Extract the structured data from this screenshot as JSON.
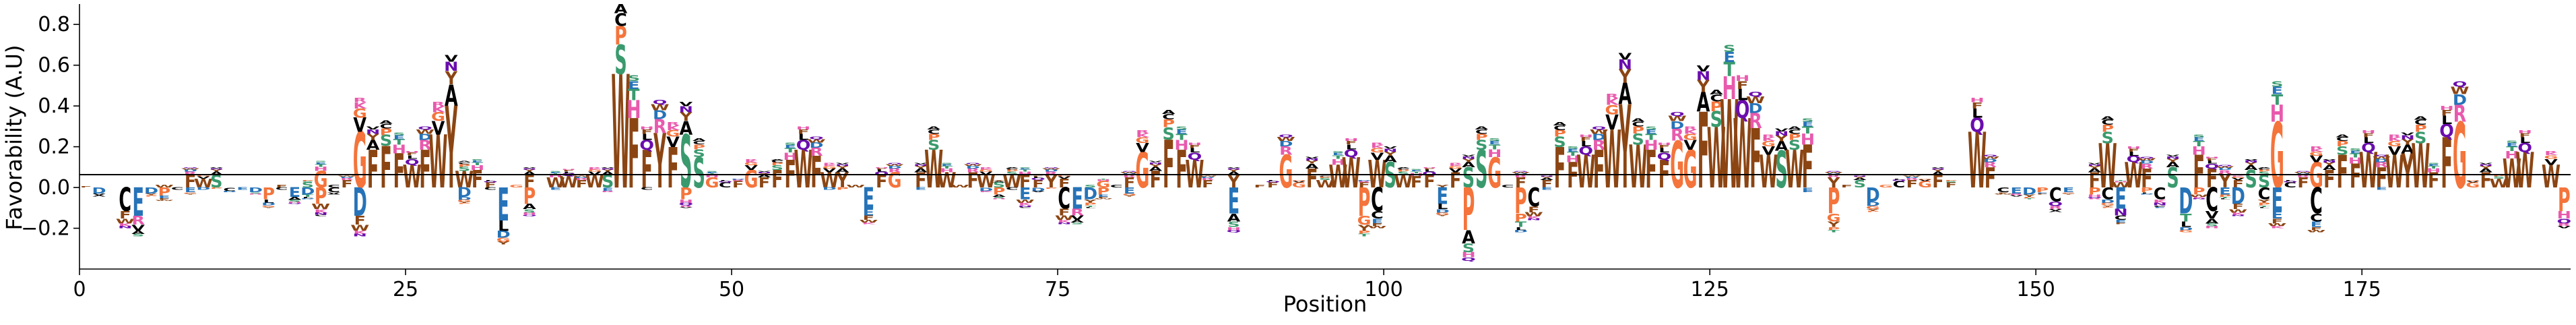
{
  "chart_data": {
    "type": "sequence-logo",
    "title": "",
    "xlabel": "Position",
    "ylabel": "Favorability (A.U)",
    "xlim": [
      0,
      191
    ],
    "ylim": [
      -0.4,
      0.9
    ],
    "x_ticks": [
      0,
      25,
      50,
      75,
      100,
      125,
      150,
      175
    ],
    "y_ticks": [
      -0.2,
      0.0,
      0.2,
      0.4,
      0.6,
      0.8
    ],
    "x_tick_labels": [
      "0",
      "25",
      "50",
      "75",
      "100",
      "125",
      "150",
      "175"
    ],
    "y_tick_labels": [
      "−0.2",
      "0.0",
      "0.2",
      "0.4",
      "0.6",
      "0.8"
    ],
    "grid": false,
    "legend": "none",
    "letter_colors": {
      "F": "#8B4513",
      "W": "#8B4513",
      "Y": "#8B4513",
      "G": "#F4743B",
      "P": "#F4743B",
      "S": "#3A9A6E",
      "T": "#3A9A6E",
      "N": "#6A0DAD",
      "Q": "#6A0DAD",
      "E": "#2673B8",
      "D": "#2673B8",
      "C": "#000000",
      "L": "#000000",
      "M": "#000000",
      "V": "#000000",
      "I": "#000000",
      "A": "#000000",
      "H": "#E85AAD",
      "K": "#E85AAD",
      "R": "#E85AAD"
    },
    "positive_top_letters": [
      "F",
      "F",
      "F",
      "W",
      "F",
      "W",
      "G",
      "F",
      "Y",
      "W",
      "S",
      "F",
      "W",
      "C",
      "G",
      "F",
      "Y",
      "W",
      "F",
      "W",
      "F",
      "G",
      "S",
      "W",
      "F",
      "W",
      "F",
      "G",
      "F",
      "S"
    ],
    "negative_top_letters": [
      "E",
      "D",
      "E",
      "C",
      "E",
      "D",
      "E",
      "K",
      "E",
      "D",
      "P",
      "C",
      "E",
      "D",
      "E",
      "C",
      "E",
      "D",
      "E",
      "E"
    ],
    "positions": [
      0,
      1,
      2,
      3,
      4,
      5,
      6,
      7,
      8,
      9,
      10,
      11,
      12,
      13,
      14,
      15,
      16,
      17,
      18,
      19,
      20,
      21,
      22,
      23,
      24,
      25,
      26,
      27,
      28,
      29,
      30,
      31,
      32,
      33,
      34,
      35,
      36,
      37,
      38,
      39,
      40,
      41,
      42,
      43,
      44,
      45,
      46,
      47,
      48,
      49,
      50,
      51,
      52,
      53,
      54,
      55,
      56,
      57,
      58,
      59,
      60,
      61,
      62,
      63,
      64,
      65,
      66,
      67,
      68,
      69,
      70,
      71,
      72,
      73,
      74,
      75,
      76,
      77,
      78,
      79,
      80,
      81,
      82,
      83,
      84,
      85,
      86,
      87,
      88,
      89,
      90,
      91,
      92,
      93,
      94,
      95,
      96,
      97,
      98,
      99,
      100,
      101,
      102,
      103,
      104,
      105,
      106,
      107,
      108,
      109,
      110,
      111,
      112,
      113,
      114,
      115,
      116,
      117,
      118,
      119,
      120,
      121,
      122,
      123,
      124,
      125,
      126,
      127,
      128,
      129,
      130,
      131,
      132,
      133,
      134,
      135,
      136,
      137,
      138,
      139,
      140,
      141,
      142,
      143,
      144,
      145,
      146,
      147,
      148,
      149,
      150,
      151,
      152,
      153,
      154,
      155,
      156,
      157,
      158,
      159,
      160,
      161,
      162,
      163,
      164,
      165,
      166,
      167,
      168,
      169,
      170,
      171,
      172,
      173,
      174,
      175,
      176,
      177,
      178,
      179,
      180,
      181,
      182,
      183,
      184,
      185,
      186,
      187,
      188,
      189,
      190
    ],
    "positive_heights": [
      0.01,
      0.0,
      0.0,
      0.0,
      0.0,
      0.0,
      0.02,
      0.0,
      0.1,
      0.07,
      0.1,
      0.0,
      0.0,
      0.0,
      0.0,
      0.02,
      0.0,
      0.04,
      0.13,
      0.02,
      0.06,
      0.44,
      0.3,
      0.33,
      0.27,
      0.18,
      0.3,
      0.42,
      0.65,
      0.13,
      0.14,
      0.04,
      0.0,
      0.02,
      0.1,
      0.0,
      0.08,
      0.09,
      0.06,
      0.1,
      0.1,
      0.9,
      0.55,
      0.3,
      0.43,
      0.32,
      0.42,
      0.24,
      0.08,
      0.04,
      0.05,
      0.14,
      0.08,
      0.14,
      0.22,
      0.3,
      0.25,
      0.12,
      0.12,
      0.02,
      0.0,
      0.1,
      0.12,
      0.0,
      0.12,
      0.3,
      0.12,
      0.02,
      0.12,
      0.1,
      0.04,
      0.1,
      0.1,
      0.06,
      0.1,
      0.07,
      0.0,
      0.02,
      0.05,
      0.02,
      0.08,
      0.28,
      0.13,
      0.38,
      0.3,
      0.22,
      0.06,
      0.0,
      0.1,
      0.0,
      0.02,
      0.04,
      0.26,
      0.04,
      0.15,
      0.06,
      0.18,
      0.24,
      0.04,
      0.22,
      0.2,
      0.1,
      0.09,
      0.1,
      0.02,
      0.12,
      0.16,
      0.3,
      0.24,
      0.02,
      0.08,
      0.0,
      0.06,
      0.32,
      0.2,
      0.26,
      0.3,
      0.46,
      0.66,
      0.34,
      0.3,
      0.22,
      0.37,
      0.3,
      0.6,
      0.48,
      0.7,
      0.55,
      0.47,
      0.26,
      0.29,
      0.3,
      0.34,
      0.0,
      0.08,
      0.02,
      0.06,
      0.0,
      0.02,
      0.05,
      0.06,
      0.05,
      0.1,
      0.04,
      0.0,
      0.44,
      0.16,
      0.0,
      0.0,
      0.0,
      0.0,
      0.0,
      0.0,
      0.0,
      0.12,
      0.35,
      0.04,
      0.2,
      0.15,
      0.0,
      0.16,
      0.0,
      0.26,
      0.15,
      0.11,
      0.06,
      0.14,
      0.1,
      0.52,
      0.04,
      0.08,
      0.2,
      0.14,
      0.26,
      0.19,
      0.28,
      0.16,
      0.26,
      0.27,
      0.35,
      0.12,
      0.4,
      0.52,
      0.04,
      0.12,
      0.07,
      0.23,
      0.28,
      0.0,
      0.18,
      0.0,
      0.3,
      0.0,
      0.0
    ],
    "negative_depths": [
      0.0,
      -0.05,
      0.0,
      -0.2,
      -0.24,
      -0.05,
      -0.07,
      -0.02,
      -0.04,
      -0.02,
      -0.01,
      -0.03,
      -0.02,
      -0.04,
      -0.1,
      -0.02,
      -0.08,
      -0.06,
      -0.14,
      -0.04,
      0.0,
      -0.24,
      0.0,
      0.0,
      0.0,
      0.0,
      0.0,
      0.0,
      0.0,
      -0.08,
      0.0,
      -0.02,
      -0.28,
      0.0,
      -0.14,
      0.0,
      -0.02,
      0.0,
      0.0,
      0.0,
      -0.03,
      0.0,
      0.0,
      -0.02,
      0.0,
      0.0,
      -0.1,
      0.0,
      0.0,
      0.0,
      0.0,
      0.0,
      0.0,
      0.0,
      0.0,
      0.0,
      0.0,
      -0.02,
      -0.02,
      0.0,
      -0.18,
      0.0,
      0.0,
      0.0,
      -0.02,
      0.0,
      0.0,
      0.0,
      0.0,
      -0.03,
      -0.06,
      -0.02,
      -0.1,
      -0.03,
      -0.01,
      -0.18,
      -0.18,
      -0.1,
      -0.06,
      0.0,
      -0.05,
      0.0,
      0.0,
      0.0,
      0.0,
      0.0,
      0.0,
      0.0,
      -0.22,
      0.0,
      0.0,
      0.0,
      0.0,
      0.0,
      0.0,
      0.0,
      0.0,
      0.0,
      -0.24,
      -0.2,
      0.0,
      0.0,
      0.0,
      0.0,
      -0.14,
      0.0,
      -0.36,
      0.0,
      0.0,
      0.0,
      -0.22,
      -0.16,
      -0.02,
      0.0,
      0.0,
      0.0,
      0.0,
      0.0,
      0.0,
      0.0,
      0.0,
      0.0,
      0.0,
      0.0,
      0.0,
      0.0,
      0.0,
      0.0,
      0.0,
      0.0,
      0.0,
      0.0,
      -0.03,
      0.0,
      -0.22,
      0.0,
      0.0,
      -0.12,
      0.0,
      0.0,
      0.0,
      0.0,
      0.0,
      0.0,
      0.0,
      0.0,
      0.0,
      -0.04,
      -0.05,
      -0.06,
      -0.04,
      -0.12,
      -0.04,
      0.0,
      -0.06,
      -0.1,
      -0.18,
      0.0,
      -0.04,
      -0.1,
      0.0,
      -0.22,
      -0.06,
      -0.2,
      -0.06,
      -0.14,
      0.0,
      -0.1,
      -0.2,
      0.0,
      0.0,
      -0.22,
      0.0,
      0.0,
      0.0,
      0.0,
      -0.02,
      0.0,
      0.0,
      0.0,
      0.0,
      0.0,
      0.0,
      0.0,
      0.0,
      0.0,
      0.0,
      0.0,
      0.0,
      0.0,
      -0.2,
      -0.14,
      0.0
    ]
  }
}
